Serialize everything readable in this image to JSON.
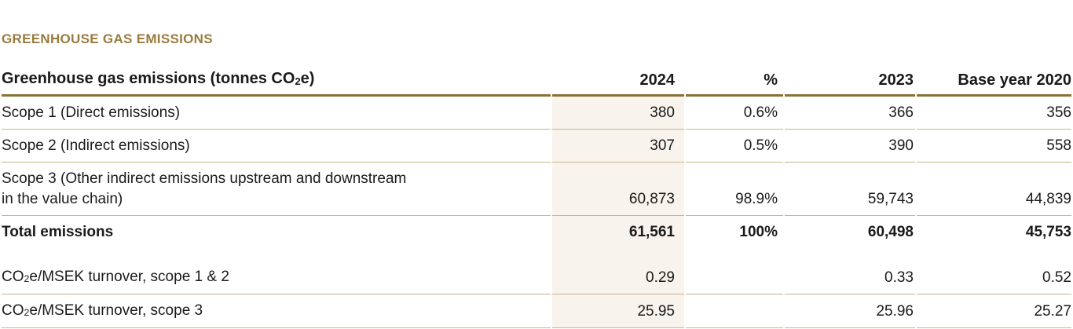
{
  "section": {
    "title": "GREENHOUSE GAS EMISSIONS"
  },
  "colors": {
    "title_gold": "#9a7b3f",
    "header_rule_gold": "#8c7037",
    "row_rule_tan": "#c9b488",
    "highlight_column_beige": "#f8f3ec",
    "text": "#1a1a1a"
  },
  "table": {
    "columns": [
      {
        "label": [
          "Greenhouse gas emissions (tonnes CO",
          {
            "sub": "2"
          },
          "e)"
        ]
      },
      {
        "label": "2024"
      },
      {
        "label": "%"
      },
      {
        "label": "2023"
      },
      {
        "label": "Base year 2020"
      }
    ],
    "rows": [
      {
        "label": "Scope 1 (Direct emissions)",
        "values": [
          "380",
          "0.6%",
          "366",
          "356"
        ]
      },
      {
        "label": "Scope 2 (Indirect emissions)",
        "values": [
          "307",
          "0.5%",
          "390",
          "558"
        ]
      },
      {
        "label": "Scope 3 (Other indirect emissions upstream and downstream in the value chain)",
        "values": [
          "60,873",
          "98.9%",
          "59,743",
          "44,839"
        ]
      },
      {
        "label": "Total emissions",
        "values": [
          "61,561",
          "100%",
          "60,498",
          "45,753"
        ]
      },
      {
        "label": [
          "CO",
          {
            "sub": "2"
          },
          "e/MSEK turnover, scope 1 & 2"
        ],
        "values": [
          "0.29",
          "",
          "0.33",
          "0.52"
        ]
      },
      {
        "label": [
          "CO",
          {
            "sub": "2"
          },
          "e/MSEK turnover, scope 3"
        ],
        "values": [
          "25.95",
          "",
          "25.96",
          "25.27"
        ]
      }
    ]
  }
}
